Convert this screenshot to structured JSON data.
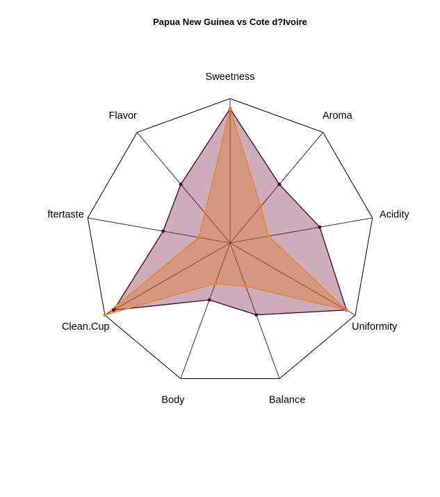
{
  "chart_data": {
    "type": "radar",
    "title": "Papua New Guinea vs Cote d?Ivoire",
    "axes": [
      "Sweetness",
      "Aroma",
      "Acidity",
      "Uniformity",
      "Balance",
      "Body",
      "Clean.Cup",
      "ftertaste",
      "Flavor"
    ],
    "range": [
      0,
      1
    ],
    "grid": "outer frame with spokes",
    "series": [
      {
        "color": "#4a0f2a",
        "fill": "rgba(120, 40, 70, 0.38)",
        "values": [
          0.93,
          0.53,
          0.63,
          0.93,
          0.53,
          0.42,
          0.93,
          0.47,
          0.53
        ]
      },
      {
        "color": "#e8822a",
        "fill": "rgba(225, 120, 45, 0.40)",
        "values": [
          0.93,
          0.33,
          0.27,
          0.93,
          0.32,
          0.3,
          1.0,
          0.22,
          0.27
        ]
      }
    ]
  }
}
